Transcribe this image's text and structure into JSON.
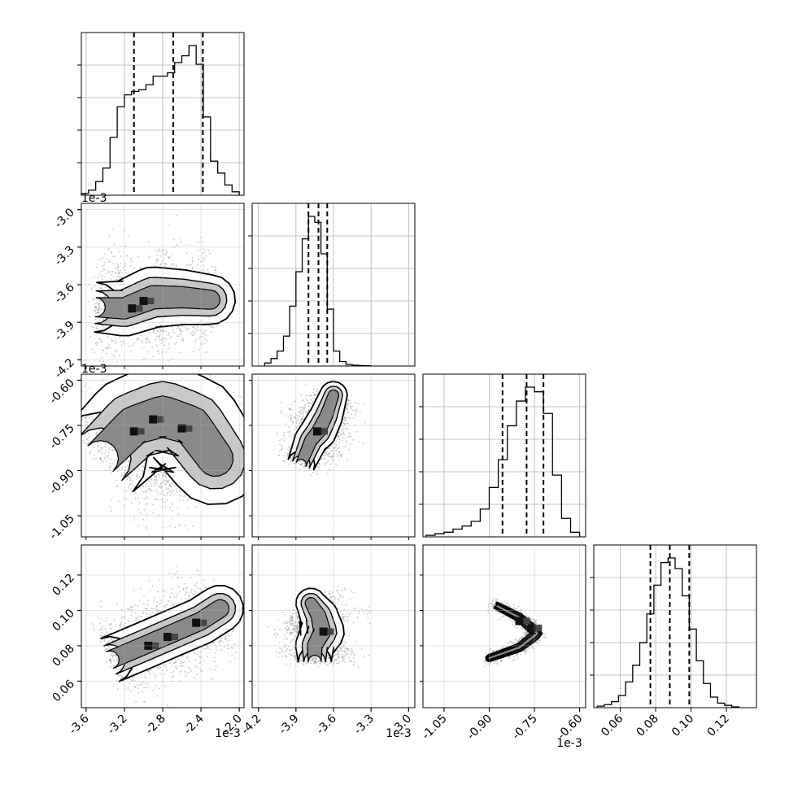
{
  "figure": {
    "kind": "corner plot",
    "colors": {
      "line": "#000000",
      "grid": "#b0b0b0",
      "scatter": "#9a9a9a",
      "background": "#ffffff"
    }
  },
  "chart_data": {
    "type": "corner",
    "parameters": [
      {
        "range": [
          -3.65,
          -1.95
        ],
        "ticks": [
          "-3.6",
          "-3.2",
          "-2.8",
          "-2.4",
          "-2.0"
        ],
        "tick_values": [
          -3.6,
          -3.2,
          -2.8,
          -2.4,
          -2.0
        ],
        "offset_label": "1e-3",
        "quantiles": [
          -3.1,
          -2.69,
          -2.38
        ]
      },
      {
        "range": [
          -4.25,
          -2.95
        ],
        "ticks": [
          "-4.2",
          "-3.9",
          "-3.6",
          "-3.3",
          "-3.0"
        ],
        "tick_values": [
          -4.2,
          -3.9,
          -3.6,
          -3.3,
          -3.0
        ],
        "offset_label": "1e-3",
        "quantiles": [
          -3.8,
          -3.72,
          -3.65
        ]
      },
      {
        "range": [
          -1.12,
          -0.58
        ],
        "ticks": [
          "-1.05",
          "-0.90",
          "-0.75",
          "-0.60"
        ],
        "tick_values": [
          -1.05,
          -0.9,
          -0.75,
          -0.6
        ],
        "offset_label": "1e-3",
        "quantiles": [
          -0.856,
          -0.776,
          -0.72
        ]
      },
      {
        "range": [
          0.045,
          0.137
        ],
        "ticks": [
          "0.06",
          "0.08",
          "0.10",
          "0.12"
        ],
        "tick_values": [
          0.06,
          0.08,
          0.1,
          0.12
        ],
        "offset_label": "",
        "quantiles": [
          0.077,
          0.088,
          0.099
        ]
      }
    ],
    "histograms": [
      {
        "bin_edges": [
          -3.65,
          -3.575,
          -3.5,
          -3.425,
          -3.35,
          -3.275,
          -3.2,
          -3.125,
          -3.05,
          -2.975,
          -2.9,
          -2.825,
          -2.75,
          -2.675,
          -2.6,
          -2.525,
          -2.45,
          -2.375,
          -2.3,
          -2.225,
          -2.15,
          -2.075,
          -2.0
        ],
        "counts": [
          0.01,
          0.03,
          0.08,
          0.16,
          0.34,
          0.52,
          0.59,
          0.61,
          0.62,
          0.65,
          0.7,
          0.7,
          0.72,
          0.78,
          0.82,
          0.88,
          0.77,
          0.46,
          0.2,
          0.13,
          0.06,
          0.02
        ]
      },
      {
        "bin_edges": [
          -4.15,
          -4.1,
          -4.05,
          -4.0,
          -3.95,
          -3.9,
          -3.85,
          -3.8,
          -3.75,
          -3.7,
          -3.65,
          -3.6,
          -3.55,
          -3.5,
          -3.45,
          -3.4,
          -3.35,
          -3.3
        ],
        "counts": [
          0.02,
          0.05,
          0.1,
          0.2,
          0.4,
          0.63,
          0.85,
          1.0,
          0.96,
          0.75,
          0.38,
          0.1,
          0.03,
          0.01,
          0.005,
          0.003,
          0.002
        ]
      },
      {
        "bin_edges": [
          -1.11,
          -1.08,
          -1.05,
          -1.02,
          -0.99,
          -0.96,
          -0.93,
          -0.9,
          -0.87,
          -0.84,
          -0.81,
          -0.78,
          -0.75,
          -0.72,
          -0.69,
          -0.66,
          -0.63,
          -0.6
        ],
        "counts": [
          0.01,
          0.02,
          0.03,
          0.05,
          0.07,
          0.1,
          0.18,
          0.32,
          0.5,
          0.72,
          0.88,
          0.97,
          0.94,
          0.8,
          0.4,
          0.12,
          0.03
        ]
      },
      {
        "bin_edges": [
          0.047,
          0.051,
          0.055,
          0.059,
          0.063,
          0.067,
          0.071,
          0.075,
          0.079,
          0.083,
          0.087,
          0.091,
          0.095,
          0.099,
          0.103,
          0.107,
          0.111,
          0.115,
          0.119,
          0.123,
          0.127
        ],
        "counts": [
          0.01,
          0.02,
          0.04,
          0.08,
          0.17,
          0.28,
          0.43,
          0.62,
          0.81,
          0.96,
          0.99,
          0.92,
          0.74,
          0.52,
          0.31,
          0.16,
          0.07,
          0.03,
          0.015,
          0.005
        ]
      }
    ],
    "density_2d": [
      {
        "x_param": 0,
        "y_param": 1,
        "curve": [
          [
            -3.5,
            -3.78
          ],
          [
            -3.2,
            -3.79
          ],
          [
            -2.9,
            -3.7
          ],
          [
            -2.6,
            -3.7
          ],
          [
            -2.3,
            -3.72
          ]
        ],
        "width": [
          0.09,
          0.1,
          0.11,
          0.1,
          0.09
        ],
        "peaks": [
          [
            -3.0,
            -3.73
          ],
          [
            -3.12,
            -3.79
          ]
        ],
        "points": 1800
      },
      {
        "x_param": 0,
        "y_param": 2,
        "curve": [
          [
            -3.45,
            -0.86
          ],
          [
            -3.1,
            -0.75
          ],
          [
            -2.8,
            -0.72
          ],
          [
            -2.5,
            -0.75
          ],
          [
            -2.25,
            -0.86
          ]
        ],
        "width": [
          0.07,
          0.075,
          0.08,
          0.075,
          0.07
        ],
        "peaks": [
          [
            -2.9,
            -0.73
          ],
          [
            -2.6,
            -0.76
          ],
          [
            -3.1,
            -0.77
          ]
        ],
        "points": 2200
      },
      {
        "x_param": 1,
        "y_param": 2,
        "curve": [
          [
            -3.86,
            -0.88
          ],
          [
            -3.78,
            -0.8
          ],
          [
            -3.72,
            -0.77
          ],
          [
            -3.66,
            -0.72
          ],
          [
            -3.6,
            -0.65
          ]
        ],
        "width": [
          0.05,
          0.06,
          0.065,
          0.06,
          0.05
        ],
        "peaks": [
          [
            -3.73,
            -0.77
          ]
        ],
        "points": 1800
      },
      {
        "x_param": 0,
        "y_param": 3,
        "curve": [
          [
            -3.35,
            0.072
          ],
          [
            -3.0,
            0.08
          ],
          [
            -2.7,
            0.087
          ],
          [
            -2.4,
            0.094
          ],
          [
            -2.2,
            0.101
          ]
        ],
        "width": [
          0.006,
          0.006,
          0.006,
          0.006,
          0.006
        ],
        "peaks": [
          [
            -2.95,
            0.08
          ],
          [
            -2.75,
            0.085
          ],
          [
            -2.45,
            0.093
          ]
        ],
        "points": 2000
      },
      {
        "x_param": 1,
        "y_param": 3,
        "curve": [
          [
            -3.75,
            0.071
          ],
          [
            -3.75,
            0.08
          ],
          [
            -3.69,
            0.088
          ],
          [
            -3.72,
            0.097
          ],
          [
            -3.78,
            0.104
          ]
        ],
        "width": [
          0.06,
          0.07,
          0.08,
          0.07,
          0.055
        ],
        "peaks": [
          [
            -3.68,
            0.088
          ]
        ],
        "points": 1800
      },
      {
        "x_param": 2,
        "y_param": 3,
        "curve": [
          [
            -0.88,
            0.103
          ],
          [
            -0.8,
            0.096
          ],
          [
            -0.74,
            0.087
          ],
          [
            -0.8,
            0.079
          ],
          [
            -0.9,
            0.073
          ]
        ],
        "width": [
          0.005,
          0.006,
          0.007,
          0.006,
          0.005
        ],
        "peaks": [
          [
            -0.76,
            0.09
          ],
          [
            -0.8,
            0.094
          ]
        ],
        "points": 1800
      }
    ]
  }
}
